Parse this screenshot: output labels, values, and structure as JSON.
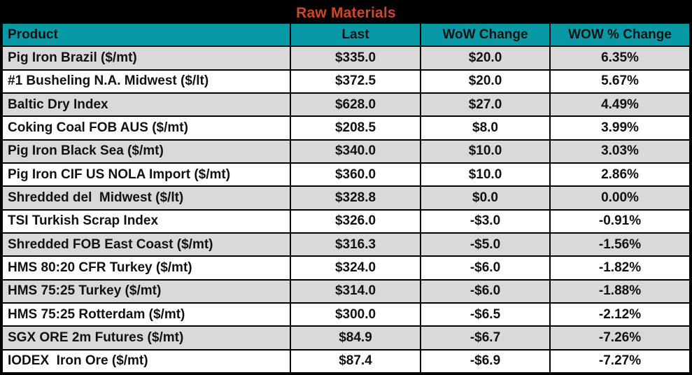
{
  "title": "Raw Materials",
  "colors": {
    "title_text": "#D1452A",
    "header_bg": "#0899A6",
    "row_bg": "#FFFFFF",
    "row_alt_bg": "#D9D9D9",
    "border": "#000000"
  },
  "columns": [
    "Product",
    "Last",
    "WoW Change",
    "WOW % Change"
  ],
  "rows": [
    {
      "product": "Pig Iron Brazil ($/mt)",
      "last": "$335.0",
      "wow_change": "$20.0",
      "wow_pct_change": "6.35%"
    },
    {
      "product": "#1 Busheling N.A. Midwest ($/lt)",
      "last": "$372.5",
      "wow_change": "$20.0",
      "wow_pct_change": "5.67%"
    },
    {
      "product": "Baltic Dry Index",
      "last": "$628.0",
      "wow_change": "$27.0",
      "wow_pct_change": "4.49%"
    },
    {
      "product": "Coking Coal FOB AUS ($/mt)",
      "last": "$208.5",
      "wow_change": "$8.0",
      "wow_pct_change": "3.99%"
    },
    {
      "product": "Pig Iron Black Sea ($/mt)",
      "last": "$340.0",
      "wow_change": "$10.0",
      "wow_pct_change": "3.03%"
    },
    {
      "product": "Pig Iron CIF US NOLA Import ($/mt)",
      "last": "$360.0",
      "wow_change": "$10.0",
      "wow_pct_change": "2.86%"
    },
    {
      "product": "Shredded del  Midwest ($/lt)",
      "last": "$328.8",
      "wow_change": "$0.0",
      "wow_pct_change": "0.00%"
    },
    {
      "product": "TSI Turkish Scrap Index",
      "last": "$326.0",
      "wow_change": "-$3.0",
      "wow_pct_change": "-0.91%"
    },
    {
      "product": "Shredded FOB East Coast ($/mt)",
      "last": "$316.3",
      "wow_change": "-$5.0",
      "wow_pct_change": "-1.56%"
    },
    {
      "product": "HMS 80:20 CFR Turkey ($/mt)",
      "last": "$324.0",
      "wow_change": "-$6.0",
      "wow_pct_change": "-1.82%"
    },
    {
      "product": "HMS 75:25 Turkey ($/mt)",
      "last": "$314.0",
      "wow_change": "-$6.0",
      "wow_pct_change": "-1.88%"
    },
    {
      "product": "HMS 75:25 Rotterdam ($/mt)",
      "last": "$300.0",
      "wow_change": "-$6.5",
      "wow_pct_change": "-2.12%"
    },
    {
      "product": "SGX ORE 2m Futures ($/mt)",
      "last": "$84.9",
      "wow_change": "-$6.7",
      "wow_pct_change": "-7.26%"
    },
    {
      "product": "IODEX  Iron Ore ($/mt)",
      "last": "$87.4",
      "wow_change": "-$6.9",
      "wow_pct_change": "-7.27%"
    }
  ],
  "chart_data": {
    "type": "table",
    "title": "Raw Materials",
    "columns": [
      "Product",
      "Last",
      "WoW Change",
      "WOW % Change"
    ],
    "rows": [
      [
        "Pig Iron Brazil ($/mt)",
        335.0,
        20.0,
        6.35
      ],
      [
        "#1 Busheling N.A. Midwest ($/lt)",
        372.5,
        20.0,
        5.67
      ],
      [
        "Baltic Dry Index",
        628.0,
        27.0,
        4.49
      ],
      [
        "Coking Coal FOB AUS ($/mt)",
        208.5,
        8.0,
        3.99
      ],
      [
        "Pig Iron Black Sea ($/mt)",
        340.0,
        10.0,
        3.03
      ],
      [
        "Pig Iron CIF US NOLA Import ($/mt)",
        360.0,
        10.0,
        2.86
      ],
      [
        "Shredded del  Midwest ($/lt)",
        328.8,
        0.0,
        0.0
      ],
      [
        "TSI Turkish Scrap Index",
        326.0,
        -3.0,
        -0.91
      ],
      [
        "Shredded FOB East Coast ($/mt)",
        316.3,
        -5.0,
        -1.56
      ],
      [
        "HMS 80:20 CFR Turkey ($/mt)",
        324.0,
        -6.0,
        -1.82
      ],
      [
        "HMS 75:25 Turkey ($/mt)",
        314.0,
        -6.0,
        -1.88
      ],
      [
        "HMS 75:25 Rotterdam ($/mt)",
        300.0,
        -6.5,
        -2.12
      ],
      [
        "SGX ORE 2m Futures ($/mt)",
        84.9,
        -6.7,
        -7.26
      ],
      [
        "IODEX  Iron Ore ($/mt)",
        87.4,
        -6.9,
        -7.27
      ]
    ],
    "units": {
      "last": "USD",
      "wow_change": "USD",
      "wow_pct_change": "percent"
    }
  }
}
